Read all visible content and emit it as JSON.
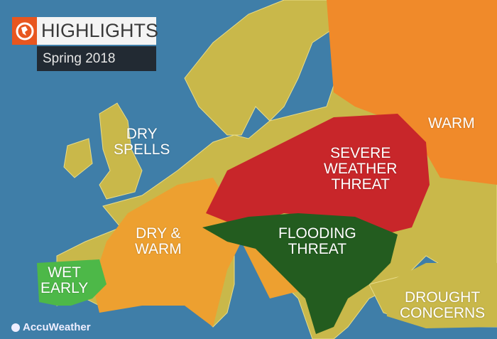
{
  "header": {
    "title": "HIGHLIGHTS",
    "subtitle": "Spring 2018",
    "icon": "globe-icon"
  },
  "regions": [
    {
      "label": "DRY\nSPELLS",
      "color": "#c9b84a"
    },
    {
      "label": "WARM",
      "color": "#f08a2a"
    },
    {
      "label": "SEVERE\nWEATHER\nTHREAT",
      "color": "#c8262a"
    },
    {
      "label": "DRY &\nWARM",
      "color": "#eda030"
    },
    {
      "label": "FLOODING\nTHREAT",
      "color": "#235c1f"
    },
    {
      "label": "WET\nEARLY",
      "color": "#4db848"
    },
    {
      "label": "DROUGHT\nCONCERNS",
      "color": "#c9b84a"
    }
  ],
  "brand": "AccuWeather",
  "colors": {
    "sea": "#3f7ea8",
    "land": "#c9b84a"
  }
}
